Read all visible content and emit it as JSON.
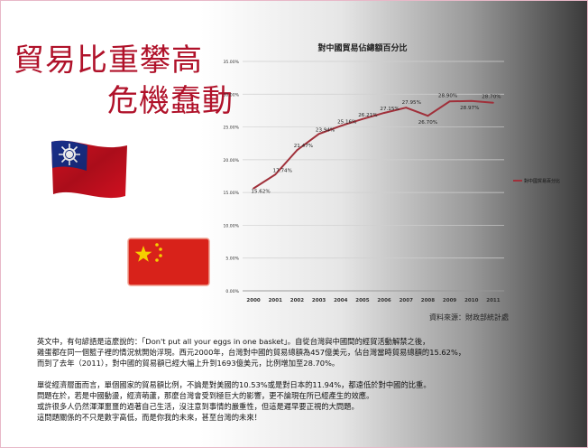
{
  "slide": {
    "title_line1": "貿易比重攀高",
    "title_line2": "危機蠢動",
    "source": "資料來源：財政部統計處",
    "paragraphs": [
      [
        "英文中，有句諺語是這麼說的：「Don't put all your eggs in one basket」。自從台灣與中國間的經貿活動解禁之後，",
        "雞蛋都在同一個籃子裡的情況就開始浮現。西元2000年，台灣對中國的貿易總額為457億美元，佔台灣當時貿易總額的15.62%，",
        "而到了去年（2011），對中國的貿易額已經大幅上升到1693億美元，比例增加至28.70%。"
      ],
      [
        "單從經濟層面而言，單個國家的貿易額比例，不論是對美國的10.53%或是對日本的11.94%，都遠低於對中國的比重。",
        "問題在於，若是中國動盪，經濟萌蘆，那麼台灣會受到極巨大的影響，更不論現在所已經產生的效應。",
        "或許很多人仍然渾渾噩噩的過著自己生活，沒注意到事情的嚴重性，但這是遲早要正視的大問題。",
        "這問題關係的不只是數字高低，而是你我的未來，甚至台灣的未來！"
      ]
    ]
  },
  "flags": {
    "taiwan_icon": "taiwan-flag-icon",
    "china_icon": "china-flag-icon",
    "taiwan_colors": {
      "red": "#d01020",
      "blue": "#1a2f8a",
      "white": "#ffffff"
    },
    "china_colors": {
      "red": "#d8221a",
      "yellow": "#f5d000"
    }
  },
  "chart_data": {
    "type": "line",
    "title": "對中國貿易佔總額百分比",
    "xlabel": "",
    "ylabel": "",
    "categories": [
      "2000",
      "2001",
      "2002",
      "2003",
      "2004",
      "2005",
      "2006",
      "2007",
      "2008",
      "2009",
      "2010",
      "2011"
    ],
    "yticks": [
      "0.00%",
      "5.00%",
      "10.00%",
      "15.00%",
      "20.00%",
      "25.00%",
      "30.00%",
      "35.00%"
    ],
    "ylim": [
      0,
      35
    ],
    "grid": true,
    "legend_position": "right",
    "line_color": "#a0303a",
    "series": [
      {
        "name": "對中國貿易百分比",
        "values": [
          15.62,
          17.74,
          21.47,
          23.94,
          25.16,
          26.21,
          27.15,
          27.95,
          26.7,
          28.9,
          28.97,
          28.7
        ],
        "labels": [
          "15.62%",
          "17.74%",
          "21.47%",
          "23.94%",
          "25.16%",
          "26.21%",
          "27.15%",
          "27.95%",
          "26.70%",
          "28.90%",
          "28.97%",
          "28.70%"
        ]
      }
    ]
  }
}
